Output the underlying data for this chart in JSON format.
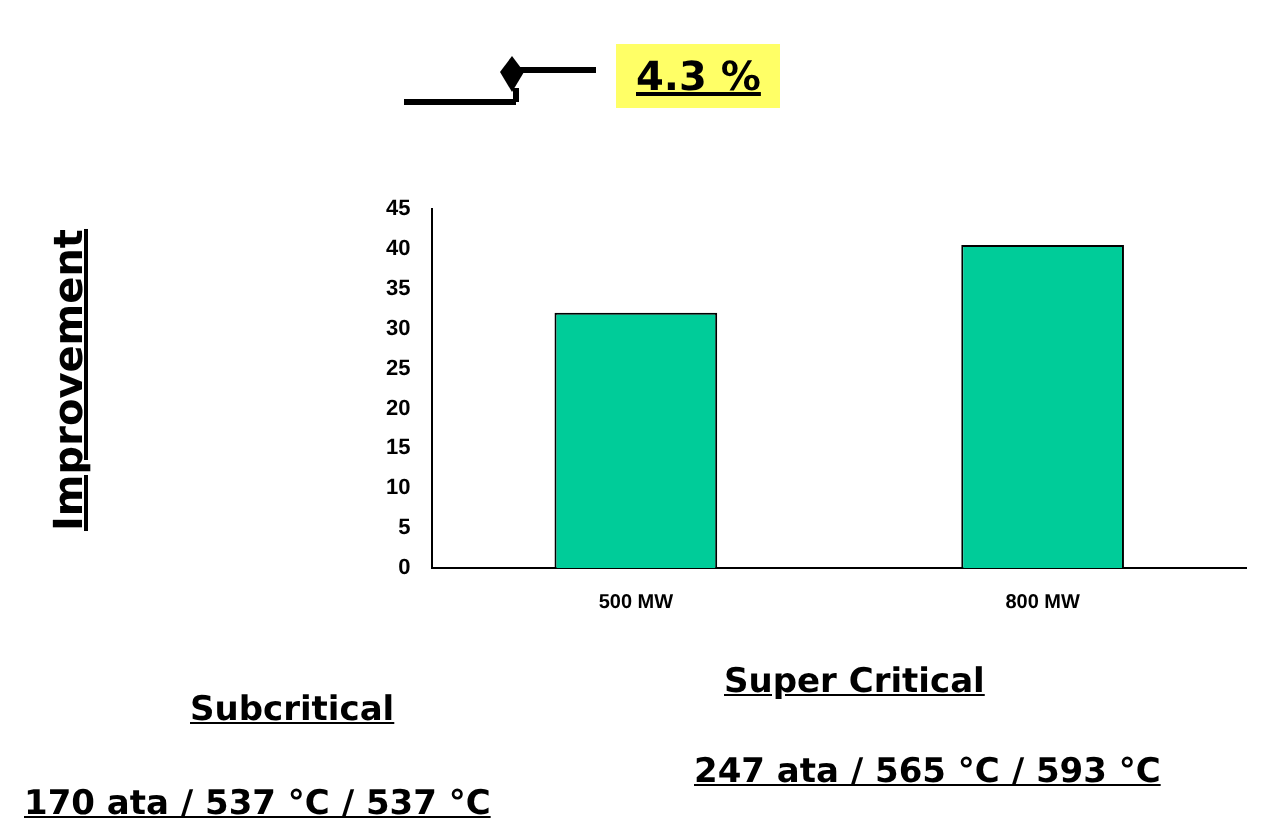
{
  "chart_data": {
    "type": "bar",
    "categories": [
      "500 MW",
      "800 MW"
    ],
    "values": [
      32,
      40.5
    ],
    "color": "#00cc99",
    "ylim": [
      0,
      45
    ],
    "yticks": [
      0,
      5,
      10,
      15,
      20,
      25,
      30,
      35,
      40,
      45
    ],
    "annotations": [
      "Improvement",
      "4.3 %",
      "Subcritical",
      "170 ata / 537 °C / 537 °C",
      "Super Critical",
      "247 ata / 565 °C / 593 °C"
    ]
  }
}
